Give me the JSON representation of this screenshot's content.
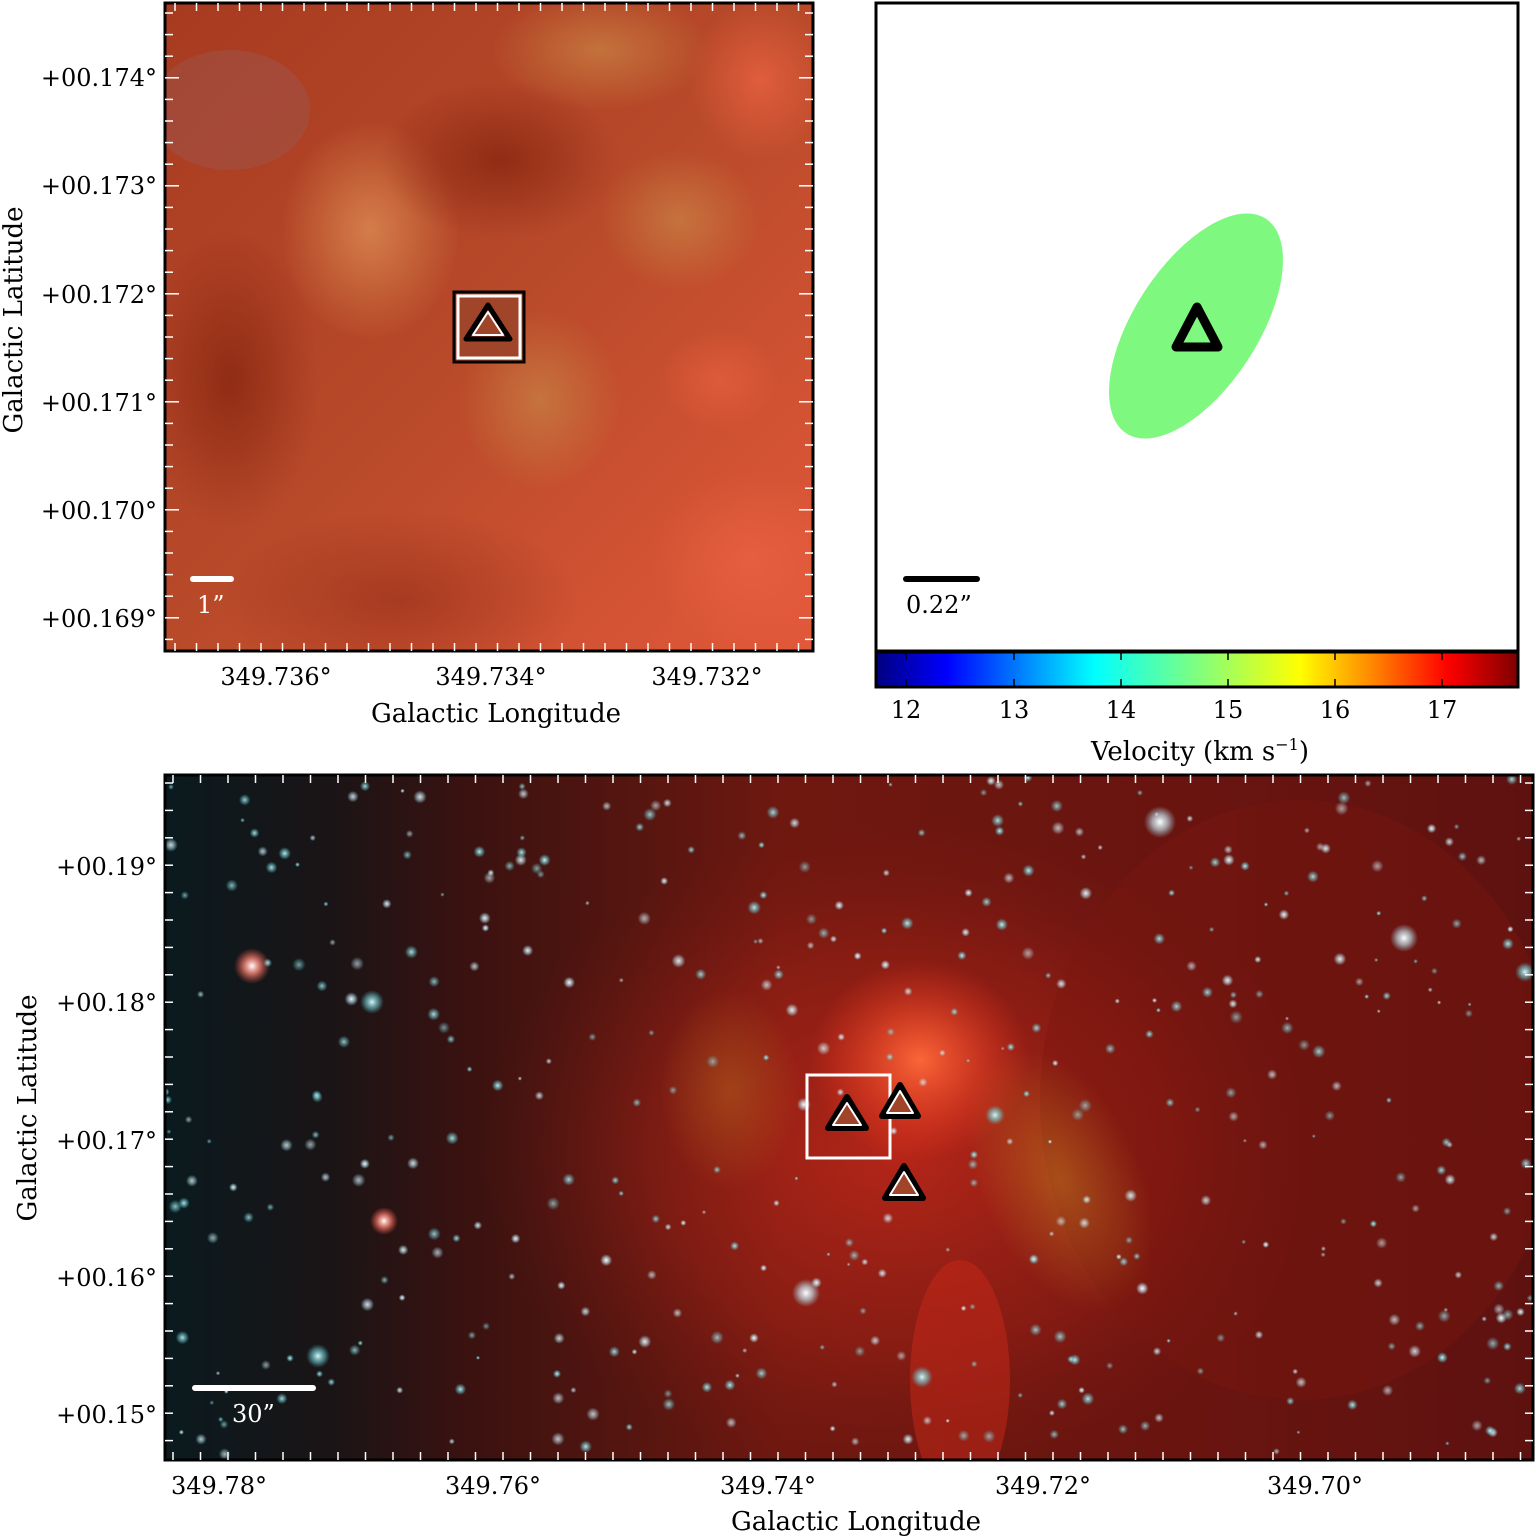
{
  "panels": {
    "top_left": {
      "x_ticks": [
        "349.736°",
        "349.734°",
        "349.732°"
      ],
      "y_ticks": [
        "+00.174°",
        "+00.173°",
        "+00.172°",
        "+00.171°",
        "+00.170°",
        "+00.169°"
      ],
      "xlabel": "Galactic Longitude",
      "ylabel": "Galactic Latitude",
      "scale_bar_label": "1”"
    },
    "top_right": {
      "scale_bar_label": "0.22”",
      "colorbar": {
        "ticks": [
          "12",
          "13",
          "14",
          "15",
          "16",
          "17"
        ],
        "label": "Velocity (km s",
        "label_sup": "−1",
        "label_end": ")",
        "range": [
          11.7,
          17.7
        ],
        "maser_velocity": 14.7,
        "colormap": [
          "#00007f",
          "#0000ff",
          "#007fff",
          "#00ffff",
          "#7fff7f",
          "#ffff00",
          "#ff7f00",
          "#ff0000",
          "#7f0000"
        ]
      }
    },
    "bottom": {
      "x_ticks": [
        "349.78°",
        "349.76°",
        "349.74°",
        "349.72°",
        "349.70°"
      ],
      "y_ticks": [
        "+00.19°",
        "+00.18°",
        "+00.17°",
        "+00.16°",
        "+00.15°"
      ],
      "xlabel": "Galactic Longitude",
      "ylabel": "Galactic Latitude",
      "scale_bar_label": "30”"
    }
  },
  "colors": {
    "ellipse_fill": "#7ef87e",
    "marker_fill": "#a0442a",
    "image_base": "#c8502e",
    "bottom_base": "#6a1410"
  }
}
